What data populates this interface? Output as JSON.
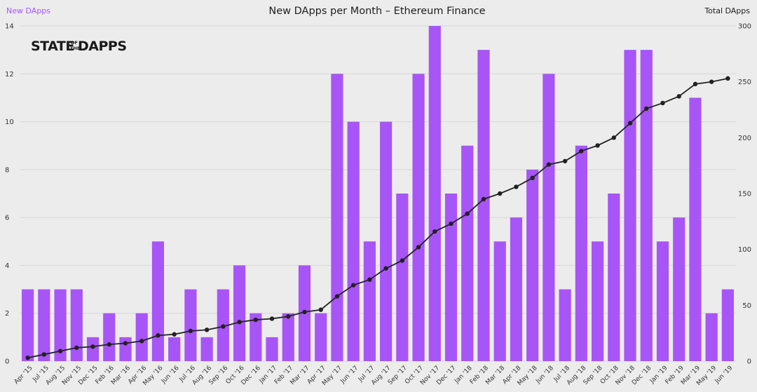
{
  "chart_data": {
    "type": "bar",
    "title": "New DApps per Month – Ethereum Finance",
    "legend_left": "New DApps",
    "legend_right": "Total DApps",
    "brand": {
      "line1": "STATE",
      "of": "OF",
      "the": "THE",
      "line2": "DAPPS"
    },
    "categories": [
      "Apr '15",
      "Jul '15",
      "Aug '15",
      "Nov '15",
      "Dec '15",
      "Feb '16",
      "Mar '16",
      "Apr '16",
      "May '16",
      "Jun '16",
      "Jul '16",
      "Aug '16",
      "Sep '16",
      "Oct '16",
      "Dec '16",
      "Jan '17",
      "Feb '17",
      "Mar '17",
      "Apr '17",
      "May '17",
      "Jun '17",
      "Jul '17",
      "Aug '17",
      "Sep '17",
      "Oct '17",
      "Nov '17",
      "Dec '17",
      "Jan '18",
      "Feb '18",
      "Mar '18",
      "Apr '18",
      "May '18",
      "Jun '18",
      "Jul '18",
      "Aug '18",
      "Sep '18",
      "Oct '18",
      "Nov '18",
      "Dec '18",
      "Jan '19",
      "Feb '19",
      "Mar '19",
      "May '19",
      "Jun '19"
    ],
    "series": [
      {
        "name": "New DApps",
        "type": "bar",
        "axis": "left",
        "color": "#a855f7",
        "values": [
          3,
          3,
          3,
          3,
          1,
          2,
          1,
          2,
          5,
          1,
          3,
          1,
          3,
          4,
          2,
          1,
          2,
          4,
          2,
          12,
          10,
          5,
          10,
          7,
          12,
          14,
          7,
          9,
          13,
          5,
          6,
          8,
          12,
          3,
          9,
          5,
          7,
          13,
          13,
          5,
          6,
          11,
          2,
          3
        ]
      },
      {
        "name": "Total DApps",
        "type": "line",
        "axis": "right",
        "color": "#222222",
        "values": [
          3,
          6,
          9,
          12,
          13,
          15,
          16,
          18,
          23,
          24,
          27,
          28,
          31,
          35,
          37,
          38,
          40,
          44,
          46,
          58,
          68,
          73,
          83,
          90,
          102,
          116,
          123,
          132,
          145,
          150,
          156,
          164,
          176,
          179,
          188,
          193,
          200,
          213,
          226,
          231,
          237,
          248,
          250,
          253
        ]
      }
    ],
    "y_left": {
      "min": 0,
      "max": 14,
      "ticks": [
        0,
        2,
        4,
        6,
        8,
        10,
        12,
        14
      ]
    },
    "y_right": {
      "min": 0,
      "max": 300,
      "ticks": [
        0,
        50,
        100,
        150,
        200,
        250,
        300
      ]
    },
    "grid": true
  }
}
